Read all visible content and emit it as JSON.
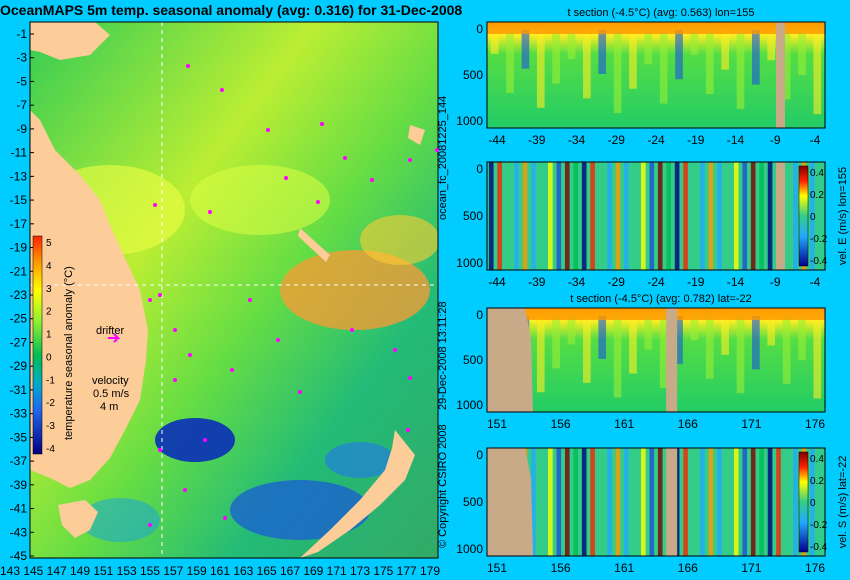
{
  "main_map": {
    "title": "OceanMAPS 5m temp. seasonal anomaly (avg: 0.316) for 31-Dec-2008",
    "y_ticks": [
      "-1",
      "-3",
      "-5",
      "-7",
      "-9",
      "-11",
      "-13",
      "-15",
      "-17",
      "-19",
      "-21",
      "-23",
      "-25",
      "-27",
      "-29",
      "-31",
      "-33",
      "-35",
      "-37",
      "-39",
      "-41",
      "-43",
      "-45"
    ],
    "x_ticks": [
      "143",
      "145",
      "147",
      "149",
      "151",
      "153",
      "155",
      "157",
      "159",
      "161",
      "163",
      "165",
      "167",
      "169",
      "171",
      "173",
      "175",
      "177",
      "179"
    ],
    "colorbar": {
      "label": "temperature seasonal anomaly (°C)",
      "ticks": [
        "5",
        "4",
        "3",
        "2",
        "1",
        "0",
        "-1",
        "-2",
        "-3",
        "-4"
      ],
      "colors": [
        "#ff3300",
        "#ff9900",
        "#ffff00",
        "#99ff33",
        "#00cc44",
        "#00b3a0",
        "#33aaff",
        "#1f4fd6",
        "#000c9e",
        "#000080"
      ]
    },
    "legend": {
      "drifter_label": "drifter",
      "velocity_label": "velocity",
      "velocity_unit": "0.5 m/s",
      "velocity_note": "4 m"
    },
    "land_color": "#fccc99"
  },
  "side_labels": {
    "top": "ocean_fc_20081225_144",
    "middle": "29-Dec-2008 13:11:28",
    "bottom": "© Copyright CSIRO 2008"
  },
  "panels": [
    {
      "id": "t_section_lon",
      "title": "t section (-4.5°C) (avg: 0.563) lon=155",
      "y_ticks": [
        "0",
        "500",
        "1000"
      ],
      "x_ticks": [
        "-44",
        "-39",
        "-34",
        "-29",
        "-24",
        "-19",
        "-14",
        "-9",
        "-4"
      ]
    },
    {
      "id": "vel_e_section",
      "title": "",
      "y_ticks": [
        "0",
        "500",
        "1000"
      ],
      "x_ticks": [
        "-44",
        "-39",
        "-34",
        "-29",
        "-24",
        "-19",
        "-14",
        "-9",
        "-4"
      ],
      "colorbar_ticks": [
        "0.4",
        "0.2",
        "0",
        "-0.2",
        "-0.4"
      ],
      "colorbar_label": "vel. E (m/s) lon=155"
    },
    {
      "id": "t_section_lat",
      "title": "t section (-4.5°C) (avg: 0.782) lat=-22",
      "y_ticks": [
        "0",
        "500",
        "1000"
      ],
      "x_ticks": [
        "151",
        "156",
        "161",
        "166",
        "171",
        "176"
      ]
    },
    {
      "id": "vel_s_section",
      "title": "",
      "y_ticks": [
        "0",
        "500",
        "1000"
      ],
      "x_ticks": [
        "151",
        "156",
        "161",
        "166",
        "171",
        "176"
      ],
      "colorbar_ticks": [
        "0.4",
        "0.2",
        "0",
        "-0.2",
        "-0.4"
      ],
      "colorbar_label": "vel. S (m/s) lat=-22"
    }
  ],
  "chart_data": [
    {
      "type": "heatmap",
      "title": "OceanMAPS 5m temp. seasonal anomaly (avg: 0.316) for 31-Dec-2008",
      "x": [
        143,
        145,
        147,
        149,
        151,
        153,
        155,
        157,
        159,
        161,
        163,
        165,
        167,
        169,
        171,
        173,
        175,
        177,
        179
      ],
      "y": [
        -1,
        -3,
        -5,
        -7,
        -9,
        -11,
        -13,
        -15,
        -17,
        -19,
        -21,
        -23,
        -25,
        -27,
        -29,
        -31,
        -33,
        -35,
        -37,
        -39,
        -41,
        -43,
        -45
      ],
      "xlim": [
        142,
        180
      ],
      "ylim": [
        -45,
        0
      ],
      "colorbar_range": [
        -4,
        5
      ],
      "colorbar_label": "temperature seasonal anomaly (°C)"
    },
    {
      "type": "heatmap",
      "title": "t section (-4.5°C) (avg: 0.563) lon=155",
      "x": [
        -44,
        -39,
        -34,
        -29,
        -24,
        -19,
        -14,
        -9,
        -4
      ],
      "y": [
        0,
        500,
        1000
      ],
      "ylim": [
        1050,
        0
      ]
    },
    {
      "type": "heatmap",
      "x": [
        -44,
        -39,
        -34,
        -29,
        -24,
        -19,
        -14,
        -9,
        -4
      ],
      "y": [
        0,
        500,
        1000
      ],
      "ylim": [
        1050,
        0
      ],
      "colorbar_range": [
        -0.4,
        0.4
      ],
      "colorbar_label": "vel. E (m/s) lon=155"
    },
    {
      "type": "heatmap",
      "title": "t section (-4.5°C) (avg: 0.782) lat=-22",
      "x": [
        151,
        156,
        161,
        166,
        171,
        176
      ],
      "y": [
        0,
        500,
        1000
      ],
      "ylim": [
        1050,
        0
      ]
    },
    {
      "type": "heatmap",
      "x": [
        151,
        156,
        161,
        166,
        171,
        176
      ],
      "y": [
        0,
        500,
        1000
      ],
      "ylim": [
        1050,
        0
      ],
      "colorbar_range": [
        -0.4,
        0.4
      ],
      "colorbar_label": "vel. S (m/s) lat=-22"
    }
  ]
}
